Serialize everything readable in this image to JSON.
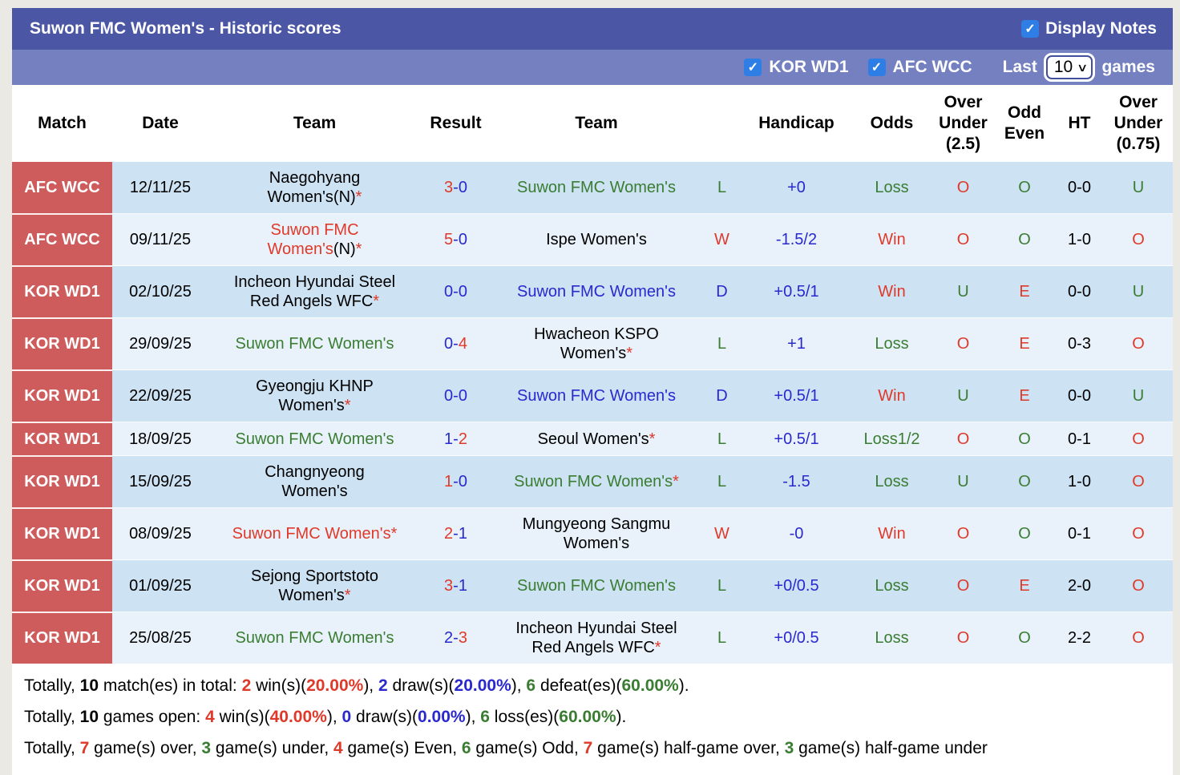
{
  "colors": {
    "red": "#df392a",
    "green": "#3a7d32",
    "navy": "#2929cf",
    "badge": "#cf5c5c",
    "title_bar": "#4b56a4",
    "filter_bar": "#7480bf",
    "checkbox": "#2e7ee5",
    "row_odd": "#cde2f3",
    "row_even": "#e9f2fb"
  },
  "title_bar": {
    "title": "Suwon FMC Women's - Historic scores",
    "display_notes_label": "Display Notes",
    "display_notes_checked": true
  },
  "filter_bar": {
    "leagues": [
      {
        "label": "KOR WD1",
        "checked": true
      },
      {
        "label": "AFC WCC",
        "checked": true
      }
    ],
    "last_label": "Last",
    "games_value": "10",
    "games_label": "games"
  },
  "table": {
    "headers": [
      [
        "Match"
      ],
      [
        "Date"
      ],
      [
        "Team"
      ],
      [
        "Result"
      ],
      [
        "Team"
      ],
      [
        ""
      ],
      [
        "Handicap"
      ],
      [
        "Odds"
      ],
      [
        "Over",
        "Under",
        "(2.5)"
      ],
      [
        "Odd",
        "Even"
      ],
      [
        "HT"
      ],
      [
        "Over",
        "Under",
        "(0.75)"
      ]
    ],
    "rows": [
      {
        "league": "AFC WCC",
        "date": "12/11/25",
        "home": {
          "name": "Naegohyang Women's",
          "color": "black",
          "neutral": true,
          "star": true
        },
        "score": {
          "home": "3",
          "home_color": "red",
          "away": "0",
          "away_color": "navy"
        },
        "away": {
          "name": "Suwon FMC Women's",
          "color": "green",
          "neutral": false,
          "star": false
        },
        "wld": {
          "t": "L",
          "color": "green"
        },
        "handicap": "+0",
        "odds": {
          "t": "Loss",
          "color": "green"
        },
        "over_under_25": {
          "t": "O",
          "color": "red"
        },
        "odd_even": {
          "t": "O",
          "color": "green"
        },
        "ht": "0-0",
        "over_under_075": {
          "t": "U",
          "color": "green"
        }
      },
      {
        "league": "AFC WCC",
        "date": "09/11/25",
        "home": {
          "name": "Suwon FMC Women's",
          "color": "red",
          "neutral": true,
          "star": true
        },
        "score": {
          "home": "5",
          "home_color": "red",
          "away": "0",
          "away_color": "navy"
        },
        "away": {
          "name": "Ispe Women's",
          "color": "black",
          "neutral": false,
          "star": false
        },
        "wld": {
          "t": "W",
          "color": "red"
        },
        "handicap": "-1.5/2",
        "odds": {
          "t": "Win",
          "color": "red"
        },
        "over_under_25": {
          "t": "O",
          "color": "red"
        },
        "odd_even": {
          "t": "O",
          "color": "green"
        },
        "ht": "1-0",
        "over_under_075": {
          "t": "O",
          "color": "red"
        }
      },
      {
        "league": "KOR WD1",
        "date": "02/10/25",
        "home": {
          "name": "Incheon Hyundai Steel Red Angels WFC",
          "color": "black",
          "neutral": false,
          "star": true
        },
        "score": {
          "home": "0",
          "home_color": "navy",
          "away": "0",
          "away_color": "navy"
        },
        "away": {
          "name": "Suwon FMC Women's",
          "color": "navy",
          "neutral": false,
          "star": false
        },
        "wld": {
          "t": "D",
          "color": "navy"
        },
        "handicap": "+0.5/1",
        "odds": {
          "t": "Win",
          "color": "red"
        },
        "over_under_25": {
          "t": "U",
          "color": "green"
        },
        "odd_even": {
          "t": "E",
          "color": "red"
        },
        "ht": "0-0",
        "over_under_075": {
          "t": "U",
          "color": "green"
        }
      },
      {
        "league": "KOR WD1",
        "date": "29/09/25",
        "home": {
          "name": "Suwon FMC Women's",
          "color": "green",
          "neutral": false,
          "star": false
        },
        "score": {
          "home": "0",
          "home_color": "navy",
          "away": "4",
          "away_color": "red"
        },
        "away": {
          "name": "Hwacheon KSPO Women's",
          "color": "black",
          "neutral": false,
          "star": true
        },
        "wld": {
          "t": "L",
          "color": "green"
        },
        "handicap": "+1",
        "odds": {
          "t": "Loss",
          "color": "green"
        },
        "over_under_25": {
          "t": "O",
          "color": "red"
        },
        "odd_even": {
          "t": "E",
          "color": "red"
        },
        "ht": "0-3",
        "over_under_075": {
          "t": "O",
          "color": "red"
        }
      },
      {
        "league": "KOR WD1",
        "date": "22/09/25",
        "home": {
          "name": "Gyeongju KHNP Women's",
          "color": "black",
          "neutral": false,
          "star": true
        },
        "score": {
          "home": "0",
          "home_color": "navy",
          "away": "0",
          "away_color": "navy"
        },
        "away": {
          "name": "Suwon FMC Women's",
          "color": "navy",
          "neutral": false,
          "star": false
        },
        "wld": {
          "t": "D",
          "color": "navy"
        },
        "handicap": "+0.5/1",
        "odds": {
          "t": "Win",
          "color": "red"
        },
        "over_under_25": {
          "t": "U",
          "color": "green"
        },
        "odd_even": {
          "t": "E",
          "color": "red"
        },
        "ht": "0-0",
        "over_under_075": {
          "t": "U",
          "color": "green"
        }
      },
      {
        "league": "KOR WD1",
        "date": "18/09/25",
        "home": {
          "name": "Suwon FMC Women's",
          "color": "green",
          "neutral": false,
          "star": false
        },
        "score": {
          "home": "1",
          "home_color": "navy",
          "away": "2",
          "away_color": "red"
        },
        "away": {
          "name": "Seoul Women's",
          "color": "black",
          "neutral": false,
          "star": true
        },
        "wld": {
          "t": "L",
          "color": "green"
        },
        "handicap": "+0.5/1",
        "odds": {
          "t": "Loss1/2",
          "color": "green"
        },
        "over_under_25": {
          "t": "O",
          "color": "red"
        },
        "odd_even": {
          "t": "O",
          "color": "green"
        },
        "ht": "0-1",
        "over_under_075": {
          "t": "O",
          "color": "red"
        }
      },
      {
        "league": "KOR WD1",
        "date": "15/09/25",
        "home": {
          "name": "Changnyeong Women's",
          "color": "black",
          "neutral": false,
          "star": false
        },
        "score": {
          "home": "1",
          "home_color": "red",
          "away": "0",
          "away_color": "navy"
        },
        "away": {
          "name": "Suwon FMC Women's",
          "color": "green",
          "neutral": false,
          "star": true
        },
        "wld": {
          "t": "L",
          "color": "green"
        },
        "handicap": "-1.5",
        "odds": {
          "t": "Loss",
          "color": "green"
        },
        "over_under_25": {
          "t": "U",
          "color": "green"
        },
        "odd_even": {
          "t": "O",
          "color": "green"
        },
        "ht": "1-0",
        "over_under_075": {
          "t": "O",
          "color": "red"
        }
      },
      {
        "league": "KOR WD1",
        "date": "08/09/25",
        "home": {
          "name": "Suwon FMC Women's",
          "color": "red",
          "neutral": false,
          "star": true
        },
        "score": {
          "home": "2",
          "home_color": "red",
          "away": "1",
          "away_color": "navy"
        },
        "away": {
          "name": "Mungyeong Sangmu Women's",
          "color": "black",
          "neutral": false,
          "star": false
        },
        "wld": {
          "t": "W",
          "color": "red"
        },
        "handicap": "-0",
        "odds": {
          "t": "Win",
          "color": "red"
        },
        "over_under_25": {
          "t": "O",
          "color": "red"
        },
        "odd_even": {
          "t": "O",
          "color": "green"
        },
        "ht": "0-1",
        "over_under_075": {
          "t": "O",
          "color": "red"
        }
      },
      {
        "league": "KOR WD1",
        "date": "01/09/25",
        "home": {
          "name": "Sejong Sportstoto Women's",
          "color": "black",
          "neutral": false,
          "star": true
        },
        "score": {
          "home": "3",
          "home_color": "red",
          "away": "1",
          "away_color": "navy"
        },
        "away": {
          "name": "Suwon FMC Women's",
          "color": "green",
          "neutral": false,
          "star": false
        },
        "wld": {
          "t": "L",
          "color": "green"
        },
        "handicap": "+0/0.5",
        "odds": {
          "t": "Loss",
          "color": "green"
        },
        "over_under_25": {
          "t": "O",
          "color": "red"
        },
        "odd_even": {
          "t": "E",
          "color": "red"
        },
        "ht": "2-0",
        "over_under_075": {
          "t": "O",
          "color": "red"
        }
      },
      {
        "league": "KOR WD1",
        "date": "25/08/25",
        "home": {
          "name": "Suwon FMC Women's",
          "color": "green",
          "neutral": false,
          "star": false
        },
        "score": {
          "home": "2",
          "home_color": "navy",
          "away": "3",
          "away_color": "red"
        },
        "away": {
          "name": "Incheon Hyundai Steel Red Angels WFC",
          "color": "black",
          "neutral": false,
          "star": true
        },
        "wld": {
          "t": "L",
          "color": "green"
        },
        "handicap": "+0/0.5",
        "odds": {
          "t": "Loss",
          "color": "green"
        },
        "over_under_25": {
          "t": "O",
          "color": "red"
        },
        "odd_even": {
          "t": "O",
          "color": "green"
        },
        "ht": "2-2",
        "over_under_075": {
          "t": "O",
          "color": "red"
        }
      }
    ]
  },
  "summary": [
    [
      {
        "t": "Totally, "
      },
      {
        "t": "10",
        "b": 1
      },
      {
        "t": " match(es) in total: "
      },
      {
        "t": "2",
        "c": "red",
        "b": 1
      },
      {
        "t": " win(s)("
      },
      {
        "t": "20.00%",
        "c": "red",
        "b": 1
      },
      {
        "t": "), "
      },
      {
        "t": "2",
        "c": "navy",
        "b": 1
      },
      {
        "t": " draw(s)("
      },
      {
        "t": "20.00%",
        "c": "navy",
        "b": 1
      },
      {
        "t": "), "
      },
      {
        "t": "6",
        "c": "green",
        "b": 1
      },
      {
        "t": " defeat(es)("
      },
      {
        "t": "60.00%",
        "c": "green",
        "b": 1
      },
      {
        "t": ")."
      }
    ],
    [
      {
        "t": "Totally, "
      },
      {
        "t": "10",
        "b": 1
      },
      {
        "t": " games open: "
      },
      {
        "t": "4",
        "c": "red",
        "b": 1
      },
      {
        "t": " win(s)("
      },
      {
        "t": "40.00%",
        "c": "red",
        "b": 1
      },
      {
        "t": "), "
      },
      {
        "t": "0",
        "c": "navy",
        "b": 1
      },
      {
        "t": " draw(s)("
      },
      {
        "t": "0.00%",
        "c": "navy",
        "b": 1
      },
      {
        "t": "), "
      },
      {
        "t": "6",
        "c": "green",
        "b": 1
      },
      {
        "t": " loss(es)("
      },
      {
        "t": "60.00%",
        "c": "green",
        "b": 1
      },
      {
        "t": ")."
      }
    ],
    [
      {
        "t": "Totally, "
      },
      {
        "t": "7",
        "c": "red",
        "b": 1
      },
      {
        "t": " game(s) over, "
      },
      {
        "t": "3",
        "c": "green",
        "b": 1
      },
      {
        "t": " game(s) under, "
      },
      {
        "t": "4",
        "c": "red",
        "b": 1
      },
      {
        "t": " game(s) Even, "
      },
      {
        "t": "6",
        "c": "green",
        "b": 1
      },
      {
        "t": " game(s) Odd, "
      },
      {
        "t": "7",
        "c": "red",
        "b": 1
      },
      {
        "t": " game(s) half-game over, "
      },
      {
        "t": "3",
        "c": "green",
        "b": 1
      },
      {
        "t": " game(s) half-game under"
      }
    ]
  ]
}
